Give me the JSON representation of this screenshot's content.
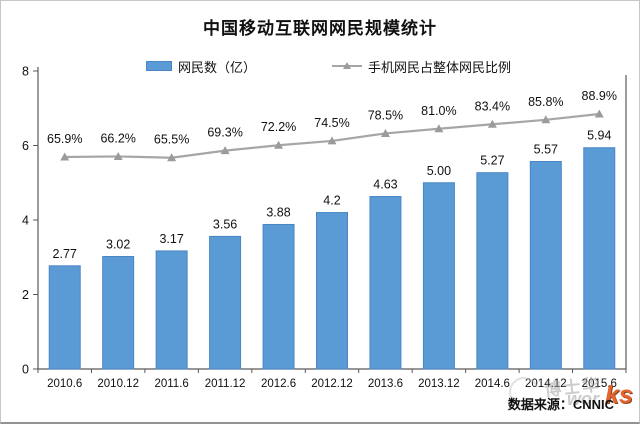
{
  "chart_data": {
    "type": "bar",
    "title": "中国移动互联网网民规模统计",
    "categories": [
      "2010.6",
      "2010.12",
      "2011.6",
      "2011.12",
      "2012.6",
      "2012.12",
      "2013.6",
      "2013.12",
      "2014.6",
      "2014.12",
      "2015.6"
    ],
    "series": [
      {
        "name": "网民数（亿）",
        "type": "bar",
        "values": [
          2.77,
          3.02,
          3.17,
          3.56,
          3.88,
          4.2,
          4.63,
          5.0,
          5.27,
          5.57,
          5.94
        ],
        "value_labels": [
          "2.77",
          "3.02",
          "3.17",
          "3.56",
          "3.88",
          "4.2",
          "4.63",
          "5.00",
          "5.27",
          "5.57",
          "5.94"
        ],
        "color": "#5B9BD5"
      },
      {
        "name": "手机网民占整体网民比例",
        "type": "line",
        "values": [
          65.9,
          66.2,
          65.5,
          69.3,
          72.2,
          74.5,
          78.5,
          81.0,
          83.4,
          85.8,
          88.9
        ],
        "value_labels": [
          "65.9%",
          "66.2%",
          "65.5%",
          "69.3%",
          "72.2%",
          "74.5%",
          "78.5%",
          "81.0%",
          "83.4%",
          "85.8%",
          "88.9%"
        ],
        "unit": "%",
        "color": "#a6a6a6"
      }
    ],
    "ylabel": "",
    "xlabel": "",
    "ylim": [
      0,
      8
    ],
    "yticks": [
      0,
      2,
      4,
      6,
      8
    ],
    "grid": false,
    "legend_position": "top"
  },
  "footer": {
    "source": "数据来源：CNNIC"
  },
  "watermark": {
    "cn": "博士华",
    "en_gray": "wor",
    "en_orange": "ks"
  },
  "colors": {
    "bar_fill": "#5B9BD5",
    "bar_border": "#4a86c5",
    "line": "#a6a6a6",
    "marker": "#9b9b9b",
    "axis": "#595959",
    "text": "#111111"
  }
}
